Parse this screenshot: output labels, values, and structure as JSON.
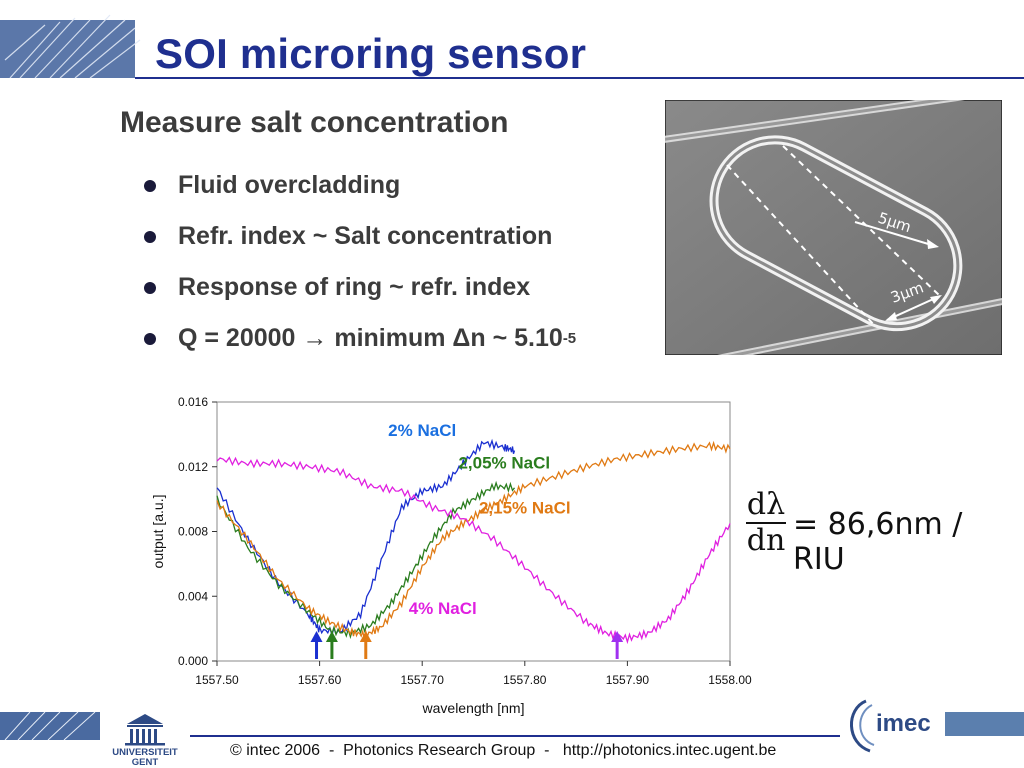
{
  "slide": {
    "title": "SOI microring sensor",
    "subtitle": "Measure salt concentration",
    "bullets": [
      "Fluid overcladding",
      "Refr. index ~ Salt concentration",
      "Response of ring ~ refr. index",
      {
        "pre": "Q = 20000 → minimum Δn ~ 5.10",
        "sup": "-5"
      }
    ],
    "photo_labels": [
      "5μm",
      "3μm"
    ],
    "formula": {
      "numerator": "dλ",
      "denominator": "dn",
      "rhs": "= 86,6nm / RIU"
    },
    "footer": "© intec 2006  -  Photonics Research Group  -   http://photonics.intec.ugent.be",
    "ugent_logo": [
      "UNIVERSITEIT",
      "GENT"
    ],
    "imec_logo": "imec"
  },
  "chart_data": {
    "type": "line",
    "xlabel": "wavelength [nm]",
    "ylabel": "output [a.u.]",
    "xlim": [
      1557.5,
      1558.0
    ],
    "ylim": [
      0.0,
      0.016
    ],
    "x_ticks": [
      "1557.50",
      "1557.60",
      "1557.70",
      "1557.80",
      "1557.90",
      "1558.00"
    ],
    "y_ticks": [
      "0.000",
      "0.004",
      "0.008",
      "0.012",
      "0.016"
    ],
    "grid": false,
    "series": [
      {
        "name": "2% NaCl",
        "color": "#1a2fd0",
        "x": [
          1557.5,
          1557.53,
          1557.56,
          1557.59,
          1557.6,
          1557.62,
          1557.64,
          1557.66,
          1557.68,
          1557.7,
          1557.72,
          1557.74,
          1557.76,
          1557.78,
          1557.79
        ],
        "y": [
          0.0107,
          0.0075,
          0.0048,
          0.0028,
          0.0019,
          0.0018,
          0.0029,
          0.0062,
          0.0095,
          0.0105,
          0.0108,
          0.0122,
          0.0135,
          0.0132,
          0.013
        ]
      },
      {
        "name": "2,05% NaCl",
        "color": "#2a7d1e",
        "x": [
          1557.5,
          1557.53,
          1557.56,
          1557.59,
          1557.61,
          1557.63,
          1557.65,
          1557.67,
          1557.69,
          1557.71,
          1557.73,
          1557.75,
          1557.77,
          1557.79
        ],
        "y": [
          0.01,
          0.007,
          0.0047,
          0.003,
          0.0019,
          0.0017,
          0.0022,
          0.0036,
          0.0055,
          0.0075,
          0.0092,
          0.01,
          0.0108,
          0.0107
        ]
      },
      {
        "name": "2,15% NaCl",
        "color": "#e07a14",
        "x": [
          1557.5,
          1557.53,
          1557.56,
          1557.59,
          1557.61,
          1557.63,
          1557.645,
          1557.66,
          1557.68,
          1557.7,
          1557.72,
          1557.74,
          1557.76,
          1557.78,
          1557.8,
          1557.83,
          1557.86,
          1557.89,
          1557.92,
          1557.95,
          1557.98,
          1558.0
        ],
        "y": [
          0.0098,
          0.0075,
          0.005,
          0.0032,
          0.0024,
          0.0018,
          0.0016,
          0.0021,
          0.0036,
          0.0058,
          0.0076,
          0.0085,
          0.0093,
          0.01,
          0.0108,
          0.0114,
          0.012,
          0.0125,
          0.0128,
          0.0131,
          0.0133,
          0.0131
        ]
      },
      {
        "name": "4% NaCl",
        "color": "#e020e0",
        "x": [
          1557.5,
          1557.53,
          1557.56,
          1557.59,
          1557.62,
          1557.65,
          1557.68,
          1557.71,
          1557.74,
          1557.77,
          1557.8,
          1557.83,
          1557.86,
          1557.88,
          1557.9,
          1557.92,
          1557.94,
          1557.96,
          1557.98,
          1558.0
        ],
        "y": [
          0.0125,
          0.0122,
          0.0122,
          0.012,
          0.0117,
          0.0108,
          0.0105,
          0.0095,
          0.0088,
          0.0075,
          0.0058,
          0.004,
          0.0024,
          0.0017,
          0.0014,
          0.0017,
          0.0026,
          0.0044,
          0.0066,
          0.0085
        ]
      }
    ],
    "annotations": [
      {
        "text": "2% NaCl",
        "color": "#1a6fe0",
        "x": 1557.7,
        "y": 0.0139
      },
      {
        "text": "2,05% NaCl",
        "color": "#2a7d1e",
        "x": 1557.78,
        "y": 0.0119
      },
      {
        "text": "2,15% NaCl",
        "color": "#e07a14",
        "x": 1557.8,
        "y": 0.0091
      },
      {
        "text": "4% NaCl",
        "color": "#e020e0",
        "x": 1557.72,
        "y": 0.0029
      }
    ],
    "arrows": [
      {
        "color": "#1a2fd0",
        "x": 1557.597
      },
      {
        "color": "#2a7d1e",
        "x": 1557.612
      },
      {
        "color": "#e07a14",
        "x": 1557.645
      },
      {
        "color": "#a030f0",
        "x": 1557.89
      }
    ]
  }
}
